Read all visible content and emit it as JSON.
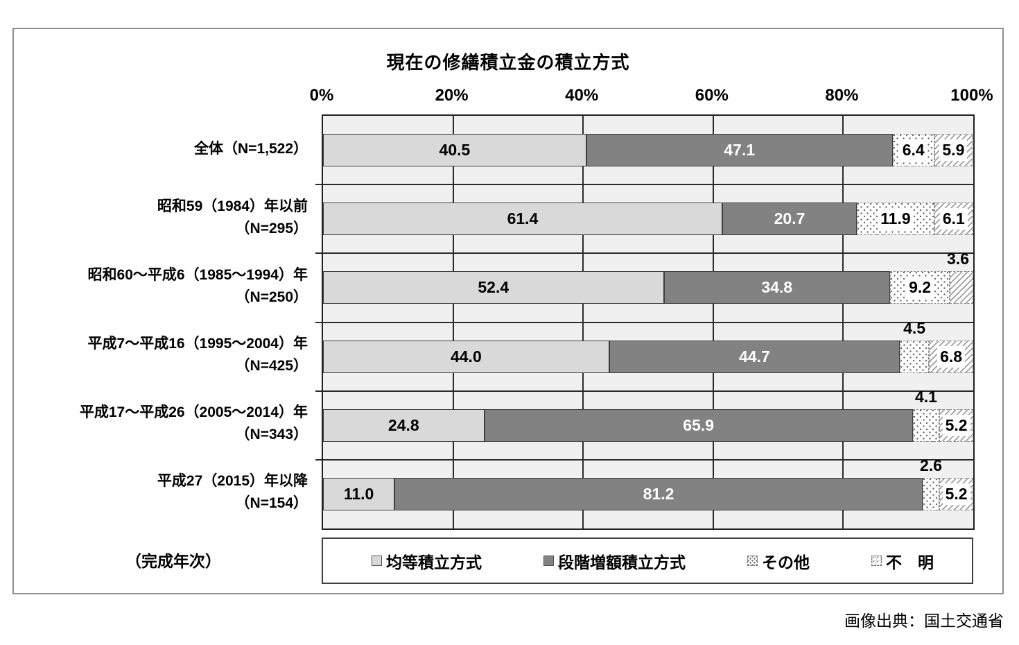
{
  "figure": {
    "title": "現在の修繕積立金の積立方式",
    "y_axis_caption": "（完成年次）",
    "source_note": "画像出典：国土交通省"
  },
  "colors": {
    "equal_fill": "#d9d9d9",
    "staged_fill": "#828282",
    "other_pattern_ink": "#6e6e6e",
    "unknown_hatch_ink": "#9f9f9f",
    "plot_background": "#f0f0f0",
    "grid_line": "#2b2b2b",
    "label_on_dark": "#ffffff",
    "label_on_light": "#000000"
  },
  "chart_data": {
    "type": "bar",
    "orientation": "horizontal",
    "stacked": true,
    "unit": "%",
    "title": "現在の修繕積立金の積立方式",
    "xlabel": "",
    "ylabel": "（完成年次）",
    "xlim": [
      0,
      100
    ],
    "x_tick_labels": [
      "0%",
      "20%",
      "40%",
      "60%",
      "80%",
      "100%"
    ],
    "grid": "vertical gridlines every 20%, horizontal band separators",
    "legend_position": "bottom",
    "categories": [
      "全体（N=1,522）",
      "昭和59（1984）年以前\n（N=295）",
      "昭和60～平成6（1985～1994）年\n（N=250）",
      "平成7～平成16（1995～2004）年\n（N=425）",
      "平成17～平成26（2005～2014）年\n（N=343）",
      "平成27（2015）年以降\n（N=154）"
    ],
    "series": [
      {
        "name": "均等積立方式",
        "style": "st-equal",
        "values": [
          40.5,
          61.4,
          52.4,
          44.0,
          24.8,
          11.0
        ],
        "labels": [
          "40.5",
          "61.4",
          "52.4",
          "44.0",
          "24.8",
          "11.0"
        ]
      },
      {
        "name": "段階増額積立方式",
        "style": "st-staged",
        "values": [
          47.1,
          20.7,
          34.8,
          44.7,
          65.9,
          81.2
        ],
        "labels": [
          "47.1",
          "20.7",
          "34.8",
          "44.7",
          "65.9",
          "81.2"
        ]
      },
      {
        "name": "その他",
        "style": "st-other",
        "values": [
          6.4,
          11.9,
          9.2,
          4.5,
          4.1,
          2.6
        ],
        "labels": [
          "6.4",
          "11.9",
          "9.2",
          "4.5",
          "4.1",
          "2.6"
        ]
      },
      {
        "name": "不明",
        "style": "st-unknown",
        "values": [
          5.9,
          6.1,
          3.6,
          6.8,
          5.2,
          5.2
        ],
        "labels": [
          "5.9",
          "6.1",
          "3.6",
          "6.8",
          "5.2",
          "5.2"
        ]
      }
    ],
    "legend_labels": [
      "均等積立方式",
      "段階増額積立方式",
      "その他",
      "不　明"
    ]
  }
}
